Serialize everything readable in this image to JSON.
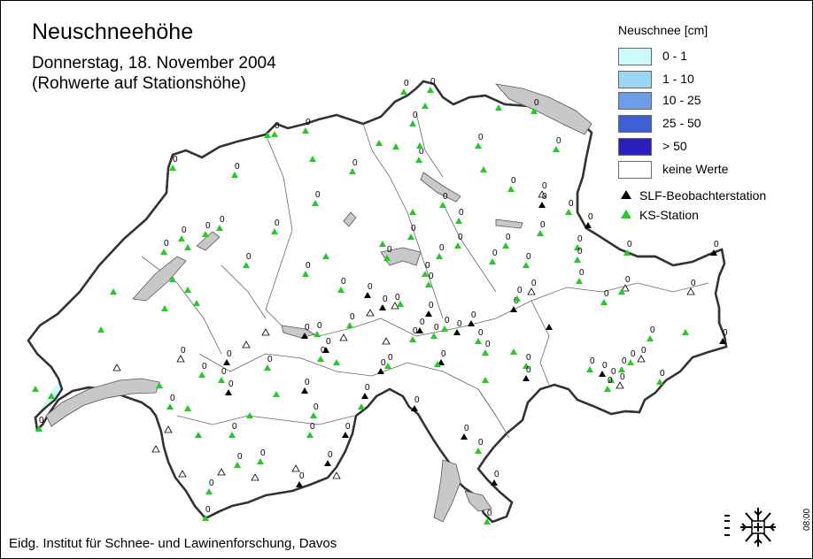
{
  "header": {
    "title": "Neuschneehöhe",
    "date_line": "Donnerstag, 18. November 2004",
    "note_line": "(Rohwerte auf Stationshöhe)"
  },
  "legend": {
    "title": "Neuschnee [cm]",
    "classes": [
      {
        "label": "0 - 1",
        "color": "#ccf9fb"
      },
      {
        "label": "1 - 10",
        "color": "#9ad6f2"
      },
      {
        "label": "10 - 25",
        "color": "#6e9de6"
      },
      {
        "label": "25 - 50",
        "color": "#3f5fd6"
      },
      {
        "label": "> 50",
        "color": "#2a1ec0"
      },
      {
        "label": "keine Werte",
        "color": "#ffffff"
      }
    ],
    "station_types": [
      {
        "label": "SLF-Beobachterstation",
        "symbol": "black-triangle",
        "color": "#000000"
      },
      {
        "label": "KS-Station",
        "symbol": "green-triangle",
        "color": "#22cc22"
      }
    ]
  },
  "map": {
    "country_color": "#ffffff",
    "lake_color": "#c8c8c8",
    "border_color": "#333333",
    "station_value_label": "0"
  },
  "footer": {
    "credit": "Eidg. Institut für Schnee- und Lawinenforschung, Davos",
    "time": "08:00"
  },
  "logo": {
    "icon": "slf-snowflake-logo-icon"
  }
}
